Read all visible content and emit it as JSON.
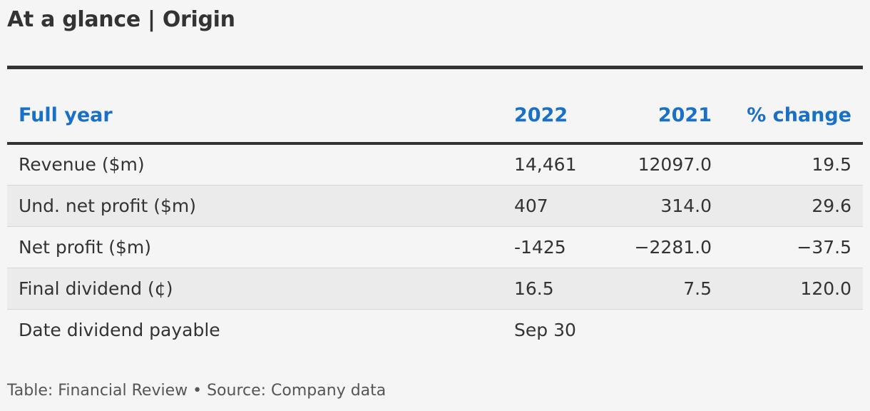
{
  "title": "At a glance | Origin",
  "footer": "Table: Financial Review • Source: Company data",
  "colors": {
    "header_text": "#1a70c7",
    "body_text": "#333333",
    "rule": "#333333",
    "alt_row": "#ebebeb",
    "background": "#f5f5f5"
  },
  "chart_data": {
    "type": "table",
    "title": "At a glance | Origin",
    "columns": [
      "Full year",
      "2022",
      "2021",
      "% change"
    ],
    "rows": [
      [
        "Revenue ($m)",
        "14,461",
        "12097.0",
        "19.5"
      ],
      [
        "Und. net profit ($m)",
        "407",
        "314.0",
        "29.6"
      ],
      [
        "Net profit ($m)",
        "-1425",
        "−2281.0",
        "−37.5"
      ],
      [
        "Final dividend (¢)",
        "16.5",
        "7.5",
        "120.0"
      ],
      [
        "Date dividend payable",
        "Sep 30",
        "",
        ""
      ]
    ]
  }
}
